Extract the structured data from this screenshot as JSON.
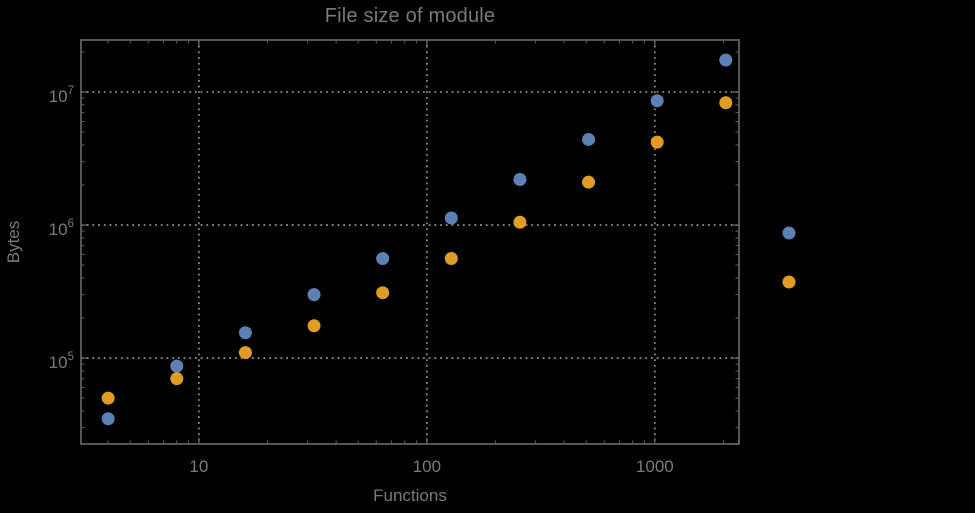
{
  "chart_data": {
    "type": "scatter",
    "title": "File size of module",
    "xlabel": "Functions",
    "ylabel": "Bytes",
    "x_scale": "log",
    "y_scale": "log",
    "xlim": [
      3.04,
      2340
    ],
    "ylim": [
      22600,
      24600000
    ],
    "grid": "dotted lines at decade ticks, on",
    "legend_position": "right of frame, vertically centered",
    "colors": {
      "background": "#000000",
      "frame": "#606060",
      "grid": "#8a8a8a",
      "text": "#7a7a7a",
      "series_blue": "#5e81b5",
      "series_orange": "#e09c24"
    },
    "x_ticks": {
      "major_values": [
        10,
        100,
        1000
      ],
      "labels": [
        "10",
        "100",
        "1000"
      ]
    },
    "y_ticks": {
      "major_values": [
        100000,
        1000000,
        10000000
      ],
      "labels": [
        {
          "mantissa": "10",
          "exponent": "5"
        },
        {
          "mantissa": "10",
          "exponent": "6"
        },
        {
          "mantissa": "10",
          "exponent": "7"
        }
      ]
    },
    "legend": {
      "labels_visible": false,
      "markers": [
        {
          "series": "series-blue",
          "color": "#5e81b5"
        },
        {
          "series": "series-orange",
          "color": "#e09c24"
        }
      ]
    },
    "series": [
      {
        "name": "series-blue",
        "marker": "disk",
        "color": "#5e81b5",
        "points": [
          [
            4,
            35000
          ],
          [
            8,
            87000
          ],
          [
            16,
            155000
          ],
          [
            32,
            300000
          ],
          [
            64,
            560000
          ],
          [
            128,
            1130000
          ],
          [
            256,
            2200000
          ],
          [
            512,
            4400000
          ],
          [
            1024,
            8600000
          ],
          [
            2048,
            17400000
          ]
        ]
      },
      {
        "name": "series-orange",
        "marker": "disk",
        "color": "#e09c24",
        "points": [
          [
            4,
            50000
          ],
          [
            8,
            70000
          ],
          [
            16,
            110000
          ],
          [
            32,
            175000
          ],
          [
            64,
            310000
          ],
          [
            128,
            560000
          ],
          [
            256,
            1050000
          ],
          [
            512,
            2100000
          ],
          [
            1024,
            4200000
          ],
          [
            2048,
            8300000
          ]
        ]
      }
    ]
  }
}
